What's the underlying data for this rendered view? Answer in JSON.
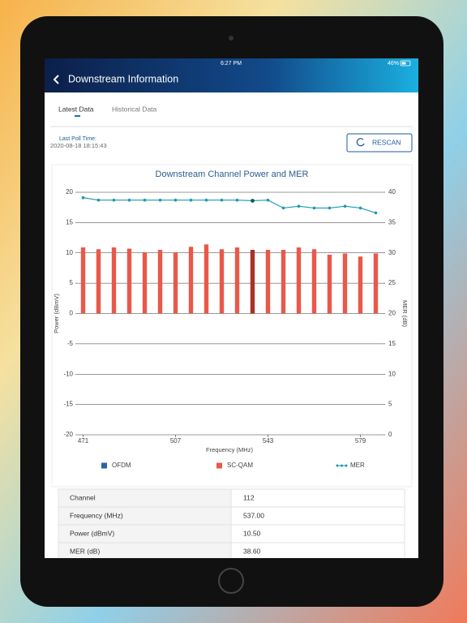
{
  "status_bar": {
    "time": "6:27 PM",
    "battery": "46%"
  },
  "header": {
    "title": "Downstream Information"
  },
  "tabs": [
    "Latest Data",
    "Historical Data"
  ],
  "poll": {
    "label": "Last Poll Time:",
    "time": "2020-08-18 18:15:43"
  },
  "button": "RESCAN",
  "chart_data": {
    "type": "bar",
    "title": "Downstream Channel Power and MER",
    "x_label": "Frequency (MHz)",
    "y_label": "Power (dBmV)",
    "y2_label": "MER (dB)",
    "x": [
      471,
      477,
      483,
      489,
      495,
      501,
      507,
      513,
      519,
      525,
      531,
      537,
      543,
      549,
      555,
      561,
      567,
      573,
      579,
      585
    ],
    "series": [
      {
        "name": "OFDM",
        "type": "bar",
        "color": "#2a63a8",
        "values": [
          null,
          null,
          null,
          null,
          null,
          null,
          null,
          null,
          null,
          null,
          null,
          null,
          null,
          null,
          null,
          null,
          null,
          null,
          null,
          null
        ]
      },
      {
        "name": "SC-QAM",
        "type": "bar",
        "color": "#e8594a",
        "values": [
          10.9,
          10.6,
          10.9,
          10.7,
          10.1,
          10.5,
          10.1,
          11.0,
          11.4,
          10.6,
          10.9,
          10.5,
          10.5,
          10.5,
          10.9,
          10.6,
          9.7,
          9.9,
          9.4,
          9.9
        ]
      },
      {
        "name": "MER",
        "type": "line",
        "axis": "y2",
        "color": "#1a9bb0",
        "values": [
          39.1,
          38.7,
          38.7,
          38.7,
          38.7,
          38.7,
          38.7,
          38.7,
          38.7,
          38.7,
          38.7,
          38.6,
          38.7,
          37.4,
          37.7,
          37.4,
          37.4,
          37.7,
          37.4,
          36.6
        ]
      }
    ],
    "selected": {
      "index": 11,
      "color": "#a93226"
    },
    "xlim": [
      468,
      588
    ],
    "xticks": [
      471,
      507,
      543,
      579
    ],
    "ylim": [
      -20,
      20
    ],
    "yticks": [
      -20,
      -15,
      -10,
      -5,
      0,
      5,
      10,
      15,
      20
    ],
    "y2lim": [
      0,
      40
    ],
    "y2ticks": [
      0,
      5,
      10,
      15,
      20,
      25,
      30,
      35,
      40
    ],
    "grid": true
  },
  "table": {
    "rows": [
      [
        "Channel",
        "112"
      ],
      [
        "Frequency (MHz)",
        "537.00"
      ],
      [
        "Power (dBmV)",
        "10.50"
      ],
      [
        "MER (dB)",
        "38.60"
      ]
    ]
  }
}
